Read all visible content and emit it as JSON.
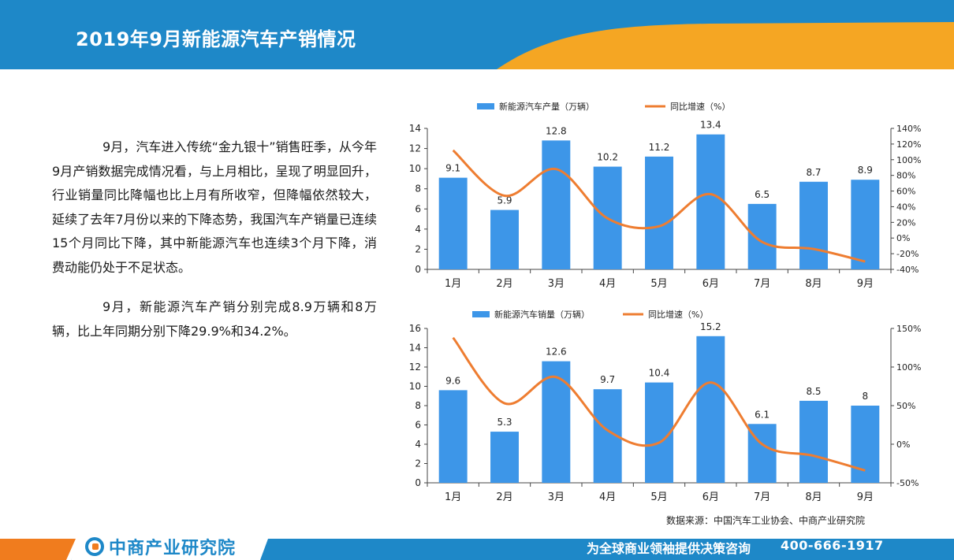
{
  "header": {
    "title": "2019年9月新能源汽车产销情况"
  },
  "body_text": {
    "paragraph1": "9月，汽车进入传统“金九银十”销售旺季，从今年9月产销数据完成情况看，与上月相比，呈现了明显回升，行业销量同比降幅也比上月有所收窄，但降幅依然较大，延续了去年7月份以来的下降态势，我国汽车产销量已连续15个月同比下降，其中新能源汽车也连续3个月下降，消费动能仍处于不足状态。",
    "paragraph2": "9月，新能源汽车产销分别完成8.9万辆和8万辆，比上年同期分别下降29.9%和34.2%。"
  },
  "chart_data": [
    {
      "type": "bar",
      "categories": [
        "1月",
        "2月",
        "3月",
        "4月",
        "5月",
        "6月",
        "7月",
        "8月",
        "9月"
      ],
      "series": [
        {
          "name": "新能源汽车产量（万辆）",
          "type": "bar",
          "axis": "left",
          "color": "#3d96e8",
          "values": [
            9.1,
            5.9,
            12.8,
            10.2,
            11.2,
            13.4,
            6.5,
            8.7,
            8.9
          ],
          "labels": [
            "9.1",
            "5.9",
            "12.8",
            "10.2",
            "11.2",
            "13.4",
            "6.5",
            "8.7",
            "8.9"
          ]
        },
        {
          "name": "同比增速（%）",
          "type": "line",
          "axis": "right",
          "color": "#ee7d31",
          "values": [
            112,
            54,
            88,
            25,
            15,
            56,
            -5,
            -14,
            -30
          ]
        }
      ],
      "ylim_left": [
        0,
        14
      ],
      "yticks_left": [
        0,
        2,
        4,
        6,
        8,
        10,
        12,
        14
      ],
      "yticklabels_left": [
        "0",
        "2",
        "4",
        "6",
        "8",
        "10",
        "12",
        "14"
      ],
      "ylim_right": [
        -40,
        140
      ],
      "yticks_right": [
        -40,
        -20,
        0,
        20,
        40,
        60,
        80,
        100,
        120,
        140
      ],
      "yticklabels_right": [
        "-40%",
        "-20%",
        "0%",
        "20%",
        "40%",
        "60%",
        "80%",
        "100%",
        "120%",
        "140%"
      ],
      "legend_position": "top",
      "grid": false
    },
    {
      "type": "bar",
      "categories": [
        "1月",
        "2月",
        "3月",
        "4月",
        "5月",
        "6月",
        "7月",
        "8月",
        "9月"
      ],
      "series": [
        {
          "name": "新能源汽车销量（万辆）",
          "type": "bar",
          "axis": "left",
          "color": "#3d96e8",
          "values": [
            9.6,
            5.3,
            12.6,
            9.7,
            10.4,
            15.2,
            6.1,
            8.5,
            8
          ],
          "labels": [
            "9.6",
            "5.3",
            "12.6",
            "9.7",
            "10.4",
            "15.2",
            "6.1",
            "8.5",
            "8"
          ]
        },
        {
          "name": "同比增速（%）",
          "type": "line",
          "axis": "right",
          "color": "#ee7d31",
          "values": [
            138,
            53,
            87,
            18,
            2,
            80,
            0,
            -15,
            -34
          ]
        }
      ],
      "ylim_left": [
        0,
        16
      ],
      "yticks_left": [
        0,
        2,
        4,
        6,
        8,
        10,
        12,
        14,
        16
      ],
      "yticklabels_left": [
        "0",
        "2",
        "4",
        "6",
        "8",
        "10",
        "12",
        "14",
        "16"
      ],
      "ylim_right": [
        -50,
        150
      ],
      "yticks_right": [
        -50,
        0,
        50,
        100,
        150
      ],
      "yticklabels_right": [
        "-50%",
        "0%",
        "50%",
        "100%",
        "150%"
      ],
      "legend_position": "top",
      "grid": false
    }
  ],
  "source": "数据来源：中国汽车工业协会、中商产业研究院",
  "footer": {
    "logo_text": "中商产业研究院",
    "slogan": "为全球商业领袖提供决策咨询",
    "phone": "400-666-1917"
  },
  "colors": {
    "header_blue": "#1e88c8",
    "header_orange": "#f5a623",
    "bar": "#3d96e8",
    "line": "#ee7d31",
    "footer_orange": "#f07c1e"
  }
}
